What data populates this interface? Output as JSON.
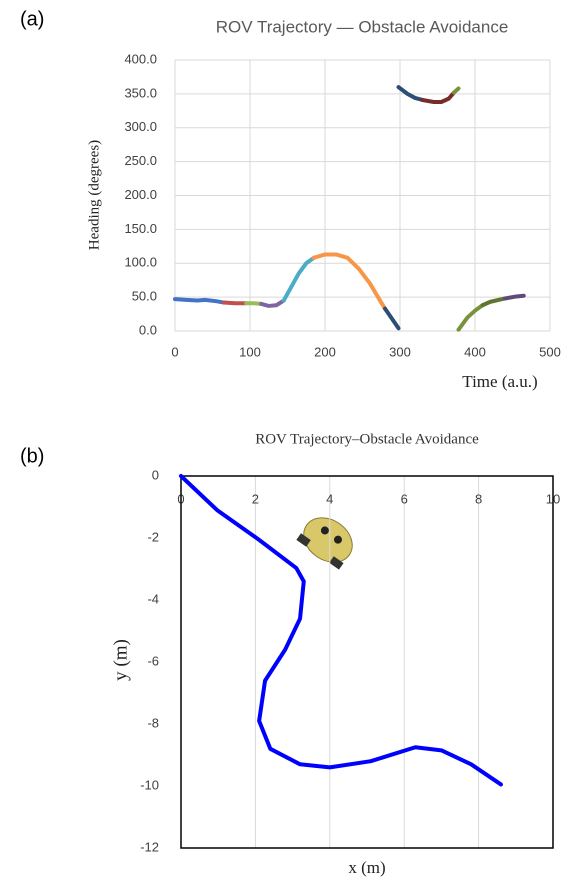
{
  "chart_data": [
    {
      "type": "line",
      "panel_label": "(a)",
      "title": "ROV Trajectory — Obstacle Avoidance",
      "xlabel": "Time (a.u.)",
      "ylabel": "Heading (degrees)",
      "xlim": [
        0,
        500
      ],
      "xticks": [
        0,
        100,
        200,
        300,
        400,
        500
      ],
      "ylim": [
        0,
        400
      ],
      "yticks": [
        {
          "value": 0,
          "label": "0.0"
        },
        {
          "value": 50,
          "label": "50.0"
        },
        {
          "value": 100,
          "label": "100.0"
        },
        {
          "value": 150,
          "label": "150.0"
        },
        {
          "value": 200,
          "label": "200.0"
        },
        {
          "value": 250,
          "label": "250.0"
        },
        {
          "value": 300,
          "label": "300.0"
        },
        {
          "value": 350,
          "label": "350.0"
        },
        {
          "value": 400,
          "label": "400.0"
        }
      ],
      "grid": true,
      "series": [
        {
          "color": "#4472c4",
          "x": [
            0,
            15,
            30,
            40,
            55,
            65
          ],
          "values": [
            47,
            46,
            45,
            46,
            44,
            42
          ]
        },
        {
          "color": "#c0504d",
          "x": [
            65,
            80,
            95
          ],
          "values": [
            42,
            41,
            41
          ]
        },
        {
          "color": "#9bbb59",
          "x": [
            95,
            105,
            115
          ],
          "values": [
            41,
            41,
            40
          ]
        },
        {
          "color": "#8064a2",
          "x": [
            115,
            125,
            135,
            145
          ],
          "values": [
            40,
            37,
            38,
            45
          ]
        },
        {
          "color": "#4bacc6",
          "x": [
            145,
            155,
            165,
            175,
            185
          ],
          "values": [
            45,
            65,
            85,
            100,
            108
          ]
        },
        {
          "color": "#f79646",
          "x": [
            185,
            200,
            215,
            230,
            245,
            260,
            275,
            280
          ],
          "values": [
            108,
            113,
            113,
            108,
            92,
            70,
            42,
            33
          ]
        },
        {
          "color": "#2c4d75",
          "x": [
            280,
            290,
            298
          ],
          "values": [
            33,
            17,
            4
          ]
        },
        {
          "color": "#2c4d75",
          "x": [
            298,
            310,
            320,
            330
          ],
          "values": [
            360,
            350,
            344,
            341
          ]
        },
        {
          "color": "#772c2a",
          "x": [
            330,
            345,
            355,
            365,
            372
          ],
          "values": [
            341,
            338,
            338,
            343,
            352
          ]
        },
        {
          "color": "#77933c",
          "x": [
            372,
            378
          ],
          "values": [
            352,
            358
          ]
        },
        {
          "color": "#77933c",
          "x": [
            378,
            390,
            400,
            410
          ],
          "values": [
            2,
            20,
            30,
            38
          ]
        },
        {
          "color": "#5f7530",
          "x": [
            410,
            420,
            440
          ],
          "values": [
            38,
            43,
            48
          ]
        },
        {
          "color": "#604a7b",
          "x": [
            440,
            455,
            465
          ],
          "values": [
            48,
            51,
            52
          ]
        }
      ]
    },
    {
      "type": "line",
      "panel_label": "(b)",
      "title": "ROV Trajectory–Obstacle Avoidance",
      "xlabel": "x (m)",
      "ylabel": "y (m)",
      "xlim": [
        0,
        10
      ],
      "xticks": [
        0,
        2,
        4,
        6,
        8,
        10
      ],
      "ylim": [
        -12,
        0
      ],
      "yticks": [
        0,
        -2,
        -4,
        -6,
        -8,
        -10,
        -12
      ],
      "grid": "x",
      "series": [
        {
          "color": "#0000ff",
          "x": [
            0,
            0.97,
            2.1,
            3.1,
            3.3,
            3.2,
            2.8,
            2.26,
            2.1,
            2.4,
            3.2,
            4.0,
            5.1,
            6.3,
            7.0,
            7.8,
            8.6
          ],
          "values": [
            0,
            -1.1,
            -2.06,
            -2.97,
            -3.4,
            -4.6,
            -5.6,
            -6.6,
            -7.9,
            -8.8,
            -9.3,
            -9.4,
            -9.2,
            -8.75,
            -8.85,
            -9.3,
            -9.95
          ]
        }
      ]
    }
  ]
}
